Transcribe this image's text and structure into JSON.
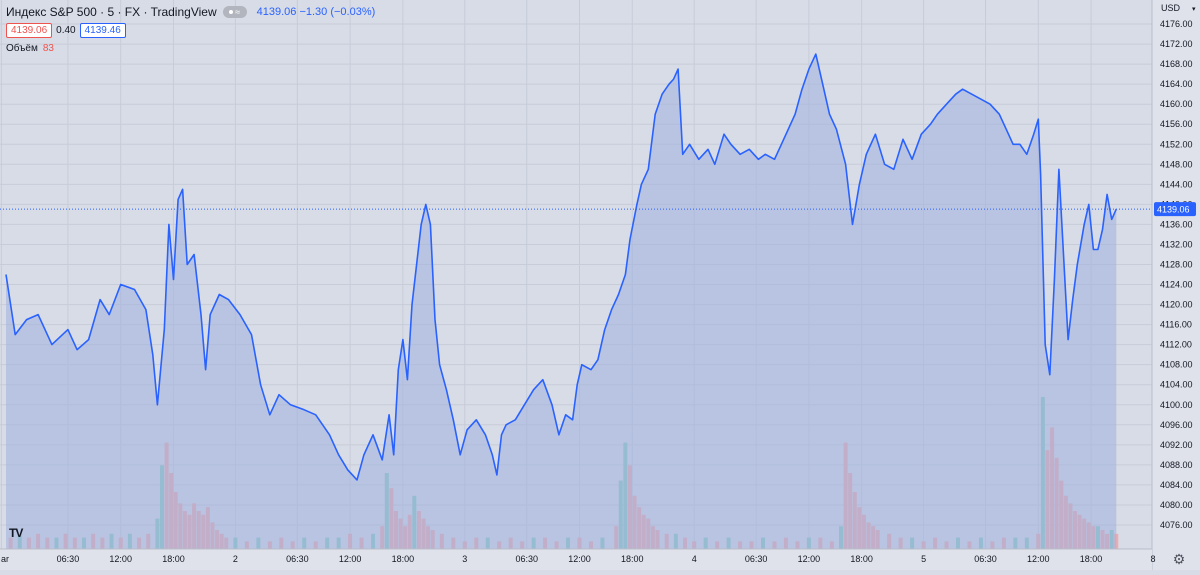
{
  "header": {
    "symbol": "Индекс S&P 500 · 5 · FX · TradingView",
    "last": "4139.06 −1.30 (−0.03%)",
    "bid": "4139.06",
    "spread": "0.40",
    "ask": "4139.46",
    "volume_label": "Объём",
    "volume_value": "83"
  },
  "colors": {
    "background": "#d8dce6",
    "line": "#2962ff",
    "area": "#9fb0df",
    "volume_up": "#7fc7bd",
    "volume_down": "#f2a3a3",
    "price_tag": "#2962ff",
    "bid": "#ef5350"
  },
  "icons": [
    "settings-icon",
    "tradingview-logo-icon"
  ],
  "chart_data": {
    "type": "area",
    "title": "Индекс S&P 500",
    "currency": "USD",
    "last_price": 4139.06,
    "ylim": [
      4074,
      4180
    ],
    "y_ticks": [
      4076,
      4080,
      4084,
      4088,
      4092,
      4096,
      4100,
      4104,
      4108,
      4112,
      4116,
      4120,
      4124,
      4128,
      4132,
      4136,
      4140,
      4144,
      4148,
      4152,
      4156,
      4160,
      4164,
      4168,
      4172,
      4176
    ],
    "x_ticks": [
      {
        "label": "ar",
        "x": -0.02
      },
      {
        "label": "06:30",
        "x": 0.27
      },
      {
        "label": "12:00",
        "x": 0.5
      },
      {
        "label": "18:00",
        "x": 0.73
      },
      {
        "label": "2",
        "x": 1.0
      },
      {
        "label": "06:30",
        "x": 1.27
      },
      {
        "label": "12:00",
        "x": 1.5
      },
      {
        "label": "18:00",
        "x": 1.73
      },
      {
        "label": "3",
        "x": 2.0
      },
      {
        "label": "06:30",
        "x": 2.27
      },
      {
        "label": "12:00",
        "x": 2.5
      },
      {
        "label": "18:00",
        "x": 2.73
      },
      {
        "label": "4",
        "x": 3.0
      },
      {
        "label": "06:30",
        "x": 3.27
      },
      {
        "label": "12:00",
        "x": 3.5
      },
      {
        "label": "18:00",
        "x": 3.73
      },
      {
        "label": "5",
        "x": 4.0
      },
      {
        "label": "06:30",
        "x": 4.27
      },
      {
        "label": "12:00",
        "x": 4.5
      },
      {
        "label": "18:00",
        "x": 4.73
      },
      {
        "label": "8",
        "x": 5.0
      }
    ],
    "price_points": [
      [
        0.0,
        4126
      ],
      [
        0.04,
        4114
      ],
      [
        0.09,
        4117
      ],
      [
        0.14,
        4118
      ],
      [
        0.2,
        4112
      ],
      [
        0.27,
        4115
      ],
      [
        0.31,
        4111
      ],
      [
        0.36,
        4113
      ],
      [
        0.41,
        4121
      ],
      [
        0.45,
        4118
      ],
      [
        0.5,
        4124
      ],
      [
        0.56,
        4123
      ],
      [
        0.61,
        4119
      ],
      [
        0.64,
        4110
      ],
      [
        0.66,
        4100
      ],
      [
        0.69,
        4115
      ],
      [
        0.71,
        4136
      ],
      [
        0.73,
        4125
      ],
      [
        0.75,
        4141
      ],
      [
        0.77,
        4143
      ],
      [
        0.79,
        4128
      ],
      [
        0.82,
        4130
      ],
      [
        0.85,
        4118
      ],
      [
        0.87,
        4107
      ],
      [
        0.89,
        4118
      ],
      [
        0.93,
        4122
      ],
      [
        0.97,
        4121
      ],
      [
        1.02,
        4118
      ],
      [
        1.07,
        4114
      ],
      [
        1.11,
        4104
      ],
      [
        1.15,
        4098
      ],
      [
        1.19,
        4102
      ],
      [
        1.24,
        4100
      ],
      [
        1.3,
        4099
      ],
      [
        1.35,
        4098
      ],
      [
        1.41,
        4094
      ],
      [
        1.45,
        4090
      ],
      [
        1.49,
        4087
      ],
      [
        1.53,
        4085
      ],
      [
        1.56,
        4090
      ],
      [
        1.6,
        4094
      ],
      [
        1.64,
        4089
      ],
      [
        1.67,
        4098
      ],
      [
        1.69,
        4090
      ],
      [
        1.71,
        4107
      ],
      [
        1.73,
        4113
      ],
      [
        1.75,
        4105
      ],
      [
        1.77,
        4120
      ],
      [
        1.79,
        4128
      ],
      [
        1.81,
        4136
      ],
      [
        1.83,
        4140
      ],
      [
        1.85,
        4136
      ],
      [
        1.87,
        4117
      ],
      [
        1.89,
        4108
      ],
      [
        1.92,
        4103
      ],
      [
        1.95,
        4097
      ],
      [
        1.98,
        4090
      ],
      [
        2.01,
        4095
      ],
      [
        2.05,
        4097
      ],
      [
        2.09,
        4094
      ],
      [
        2.12,
        4090
      ],
      [
        2.14,
        4086
      ],
      [
        2.16,
        4094
      ],
      [
        2.18,
        4096
      ],
      [
        2.22,
        4097
      ],
      [
        2.26,
        4100
      ],
      [
        2.3,
        4103
      ],
      [
        2.34,
        4105
      ],
      [
        2.38,
        4100
      ],
      [
        2.41,
        4094
      ],
      [
        2.44,
        4098
      ],
      [
        2.47,
        4097
      ],
      [
        2.49,
        4104
      ],
      [
        2.51,
        4108
      ],
      [
        2.55,
        4107
      ],
      [
        2.58,
        4109
      ],
      [
        2.61,
        4115
      ],
      [
        2.64,
        4119
      ],
      [
        2.67,
        4122
      ],
      [
        2.7,
        4126
      ],
      [
        2.72,
        4133
      ],
      [
        2.75,
        4140
      ],
      [
        2.77,
        4144
      ],
      [
        2.8,
        4147
      ],
      [
        2.83,
        4158
      ],
      [
        2.86,
        4162
      ],
      [
        2.89,
        4164
      ],
      [
        2.91,
        4165
      ],
      [
        2.93,
        4167
      ],
      [
        2.95,
        4150
      ],
      [
        2.98,
        4152
      ],
      [
        3.02,
        4149
      ],
      [
        3.06,
        4151
      ],
      [
        3.09,
        4148
      ],
      [
        3.13,
        4154
      ],
      [
        3.16,
        4152
      ],
      [
        3.2,
        4150
      ],
      [
        3.24,
        4151
      ],
      [
        3.28,
        4149
      ],
      [
        3.31,
        4150
      ],
      [
        3.35,
        4149
      ],
      [
        3.38,
        4152
      ],
      [
        3.41,
        4155
      ],
      [
        3.44,
        4158
      ],
      [
        3.47,
        4163
      ],
      [
        3.5,
        4167
      ],
      [
        3.53,
        4170
      ],
      [
        3.56,
        4164
      ],
      [
        3.59,
        4158
      ],
      [
        3.62,
        4155
      ],
      [
        3.66,
        4148
      ],
      [
        3.69,
        4136
      ],
      [
        3.72,
        4144
      ],
      [
        3.75,
        4150
      ],
      [
        3.79,
        4154
      ],
      [
        3.83,
        4148
      ],
      [
        3.87,
        4147
      ],
      [
        3.91,
        4153
      ],
      [
        3.95,
        4149
      ],
      [
        3.99,
        4154
      ],
      [
        4.03,
        4156
      ],
      [
        4.06,
        4158
      ],
      [
        4.1,
        4160
      ],
      [
        4.14,
        4162
      ],
      [
        4.17,
        4163
      ],
      [
        4.21,
        4162
      ],
      [
        4.25,
        4161
      ],
      [
        4.29,
        4160
      ],
      [
        4.33,
        4158
      ],
      [
        4.36,
        4155
      ],
      [
        4.39,
        4152
      ],
      [
        4.42,
        4152
      ],
      [
        4.45,
        4150
      ],
      [
        4.48,
        4154
      ],
      [
        4.5,
        4157
      ],
      [
        4.51,
        4146
      ],
      [
        4.53,
        4112
      ],
      [
        4.55,
        4106
      ],
      [
        4.57,
        4125
      ],
      [
        4.59,
        4147
      ],
      [
        4.61,
        4130
      ],
      [
        4.63,
        4113
      ],
      [
        4.65,
        4121
      ],
      [
        4.67,
        4128
      ],
      [
        4.7,
        4136
      ],
      [
        4.72,
        4140
      ],
      [
        4.74,
        4131
      ],
      [
        4.76,
        4131
      ],
      [
        4.78,
        4135
      ],
      [
        4.8,
        4142
      ],
      [
        4.82,
        4137
      ],
      [
        4.84,
        4139.06
      ]
    ],
    "volume_points": [
      [
        0.02,
        3
      ],
      [
        0.06,
        4
      ],
      [
        0.1,
        3
      ],
      [
        0.14,
        4
      ],
      [
        0.18,
        3
      ],
      [
        0.22,
        3
      ],
      [
        0.26,
        4
      ],
      [
        0.3,
        3
      ],
      [
        0.34,
        3
      ],
      [
        0.38,
        4
      ],
      [
        0.42,
        3
      ],
      [
        0.46,
        4
      ],
      [
        0.5,
        3
      ],
      [
        0.54,
        4
      ],
      [
        0.58,
        3
      ],
      [
        0.62,
        4
      ],
      [
        0.66,
        8
      ],
      [
        0.68,
        22
      ],
      [
        0.7,
        28
      ],
      [
        0.72,
        20
      ],
      [
        0.74,
        15
      ],
      [
        0.76,
        12
      ],
      [
        0.78,
        10
      ],
      [
        0.8,
        9
      ],
      [
        0.82,
        12
      ],
      [
        0.84,
        10
      ],
      [
        0.86,
        9
      ],
      [
        0.88,
        11
      ],
      [
        0.9,
        7
      ],
      [
        0.92,
        5
      ],
      [
        0.94,
        4
      ],
      [
        0.96,
        3
      ],
      [
        1.0,
        3
      ],
      [
        1.05,
        2
      ],
      [
        1.1,
        3
      ],
      [
        1.15,
        2
      ],
      [
        1.2,
        3
      ],
      [
        1.25,
        2
      ],
      [
        1.3,
        3
      ],
      [
        1.35,
        2
      ],
      [
        1.4,
        3
      ],
      [
        1.45,
        3
      ],
      [
        1.5,
        4
      ],
      [
        1.55,
        3
      ],
      [
        1.6,
        4
      ],
      [
        1.64,
        6
      ],
      [
        1.66,
        20
      ],
      [
        1.68,
        16
      ],
      [
        1.7,
        10
      ],
      [
        1.72,
        8
      ],
      [
        1.74,
        6
      ],
      [
        1.76,
        9
      ],
      [
        1.78,
        14
      ],
      [
        1.8,
        10
      ],
      [
        1.82,
        8
      ],
      [
        1.84,
        6
      ],
      [
        1.86,
        5
      ],
      [
        1.9,
        4
      ],
      [
        1.95,
        3
      ],
      [
        2.0,
        2
      ],
      [
        2.05,
        3
      ],
      [
        2.1,
        3
      ],
      [
        2.15,
        2
      ],
      [
        2.2,
        3
      ],
      [
        2.25,
        2
      ],
      [
        2.3,
        3
      ],
      [
        2.35,
        3
      ],
      [
        2.4,
        2
      ],
      [
        2.45,
        3
      ],
      [
        2.5,
        3
      ],
      [
        2.55,
        2
      ],
      [
        2.6,
        3
      ],
      [
        2.66,
        6
      ],
      [
        2.68,
        18
      ],
      [
        2.7,
        28
      ],
      [
        2.72,
        22
      ],
      [
        2.74,
        14
      ],
      [
        2.76,
        11
      ],
      [
        2.78,
        9
      ],
      [
        2.8,
        8
      ],
      [
        2.82,
        6
      ],
      [
        2.84,
        5
      ],
      [
        2.88,
        4
      ],
      [
        2.92,
        4
      ],
      [
        2.96,
        3
      ],
      [
        3.0,
        2
      ],
      [
        3.05,
        3
      ],
      [
        3.1,
        2
      ],
      [
        3.15,
        3
      ],
      [
        3.2,
        2
      ],
      [
        3.25,
        2
      ],
      [
        3.3,
        3
      ],
      [
        3.35,
        2
      ],
      [
        3.4,
        3
      ],
      [
        3.45,
        2
      ],
      [
        3.5,
        3
      ],
      [
        3.55,
        3
      ],
      [
        3.6,
        2
      ],
      [
        3.64,
        6
      ],
      [
        3.66,
        28
      ],
      [
        3.68,
        20
      ],
      [
        3.7,
        15
      ],
      [
        3.72,
        11
      ],
      [
        3.74,
        9
      ],
      [
        3.76,
        7
      ],
      [
        3.78,
        6
      ],
      [
        3.8,
        5
      ],
      [
        3.85,
        4
      ],
      [
        3.9,
        3
      ],
      [
        3.95,
        3
      ],
      [
        4.0,
        2
      ],
      [
        4.05,
        3
      ],
      [
        4.1,
        2
      ],
      [
        4.15,
        3
      ],
      [
        4.2,
        2
      ],
      [
        4.25,
        3
      ],
      [
        4.3,
        2
      ],
      [
        4.35,
        3
      ],
      [
        4.4,
        3
      ],
      [
        4.45,
        3
      ],
      [
        4.5,
        4
      ],
      [
        4.52,
        40
      ],
      [
        4.54,
        26
      ],
      [
        4.56,
        32
      ],
      [
        4.58,
        24
      ],
      [
        4.6,
        18
      ],
      [
        4.62,
        14
      ],
      [
        4.64,
        12
      ],
      [
        4.66,
        10
      ],
      [
        4.68,
        9
      ],
      [
        4.7,
        8
      ],
      [
        4.72,
        7
      ],
      [
        4.74,
        6
      ],
      [
        4.76,
        6
      ],
      [
        4.78,
        5
      ],
      [
        4.8,
        4
      ],
      [
        4.82,
        5
      ],
      [
        4.84,
        4
      ]
    ]
  }
}
